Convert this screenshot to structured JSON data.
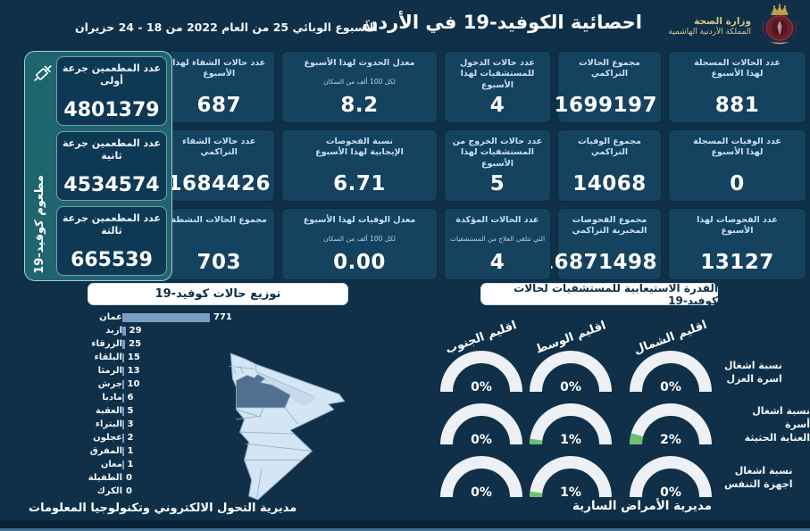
{
  "header": {
    "title": "احصائية الكوفيد-19 في الأردن",
    "week_label": "الأسبوع الوبائي  25 من العام 2022 من  18 - 24 حزيران",
    "ministry": {
      "name": "وزارة الصحة",
      "kingdom": "المملكة الأردنية الهاشمية"
    }
  },
  "colors": {
    "background": "#0f3048",
    "card": "#15425f",
    "teal_panel": "#1e6570",
    "bar": "#7e9dc3",
    "gauge_ring": "#edf1f5",
    "gauge_green": "#6fbf73",
    "map_light": "#d4e5f4",
    "map_amman_dark": "#4f7090",
    "pill_bg": "#ffffff"
  },
  "stats": {
    "cards": [
      {
        "label": "عدد الحالات المسجلة\nلهذا الأسبوع",
        "value": "881"
      },
      {
        "label": "مجموع الحالات التراكمي",
        "value": "1699197"
      },
      {
        "label": "عدد حالات الدخول\nللمستشفيات لهذا الأسبوع",
        "value": "4"
      },
      {
        "label": "معدل الحدوث لهذا الأسبوع",
        "sublabel": "لكل 100 ألف من السكان",
        "value": "8.2"
      },
      {
        "label": "عدد حالات الشفاء لهذا\nالأسبوع",
        "value": "687"
      },
      {
        "label": "عدد الوفيات المسجلة\nلهذا الأسبوع",
        "value": "0"
      },
      {
        "label": "مجموع الوفيات\nالتراكمي",
        "value": "14068"
      },
      {
        "label": "عدد حالات الخروج من\nالمستشفيات لهذا الأسبوع",
        "value": "5"
      },
      {
        "label": "نسبة الفحوصات\nالإيجابية لهذا الأسبوع",
        "value": "6.71"
      },
      {
        "label": "عدد حالات الشفاء\nالتراكمي",
        "value": "1684426"
      },
      {
        "label": "عدد الفحوصات لهذا\nالأسبوع",
        "value": "13127"
      },
      {
        "label": "مجموع الفحوصات\nالمخبرية التراكمي",
        "value": "16871498"
      },
      {
        "label": "عدد الحالات المؤكدة",
        "sublabel": "التي تتلقى العلاج من المستشفيات",
        "value": "4"
      },
      {
        "label": "معدل الوفيات لهذا الأسبوع",
        "sublabel": "لكل 100 ألف من السكان",
        "value": "0.00"
      },
      {
        "label": "مجموع الحالات النشطة",
        "value": "703"
      }
    ]
  },
  "vaccination": {
    "vertical_label": "مطعوم كوفيد-19",
    "cards": [
      {
        "label": "عدد المطعمين جرعة\nأولى",
        "value": "4801379"
      },
      {
        "label": "عدد المطعمين جرعة\nثانية",
        "value": "4534574"
      },
      {
        "label": "عدد المطعمين جرعة\nثالثة",
        "value": "665539"
      }
    ]
  },
  "distribution": {
    "title": "توزيع حالات كوفيد-19"
  },
  "capacity": {
    "title": "القدرة الاستيعابية للمستشفيات لحالات كوفيد-19",
    "regions": [
      "اقليم الشمال",
      "اقليم الوسط",
      "اقليم الجنوب"
    ],
    "rows": [
      {
        "label": "نسبة اشغال\nاسرة العزل",
        "values": [
          0,
          0,
          0
        ]
      },
      {
        "label": "نسبة اشغال أسرة\nالعناية الحثيثة",
        "values": [
          2,
          1,
          0
        ]
      },
      {
        "label": "نسبة اشغال\nاجهزة التنفس",
        "values": [
          0,
          1,
          0
        ]
      }
    ],
    "unit": "%"
  },
  "footer": {
    "left": "مديرية التحول الالكتروني وتكنولوجيا المعلومات",
    "right": "مديرية الأمراض السارية"
  },
  "chart_data": [
    {
      "type": "bar",
      "orientation": "horizontal",
      "title": "توزيع حالات كوفيد-19",
      "categories": [
        "عمان",
        "اربد",
        "الزرقاء",
        "البلقاء",
        "الرمثا",
        "جرش",
        "مادبا",
        "العقبة",
        "البتراء",
        "عجلون",
        "المفرق",
        "معان",
        "الطفيلة",
        "الكرك"
      ],
      "values": [
        771,
        29,
        25,
        15,
        13,
        10,
        6,
        5,
        3,
        2,
        1,
        1,
        0,
        0
      ],
      "xlim": [
        0,
        771
      ],
      "bar_color": "#7e9dc3",
      "grid": false,
      "value_labels": true
    },
    {
      "type": "table",
      "title": "القدرة الاستيعابية للمستشفيات لحالات كوفيد-19",
      "columns": [
        "اقليم الشمال",
        "اقليم الوسط",
        "اقليم الجنوب"
      ],
      "rows": [
        [
          "نسبة اشغال اسرة العزل",
          "0%",
          "0%",
          "0%"
        ],
        [
          "نسبة اشغال أسرة العناية الحثيثة",
          "2%",
          "1%",
          "0%"
        ],
        [
          "نسبة اشغال اجهزة التنفس",
          "0%",
          "1%",
          "0%"
        ]
      ]
    }
  ]
}
